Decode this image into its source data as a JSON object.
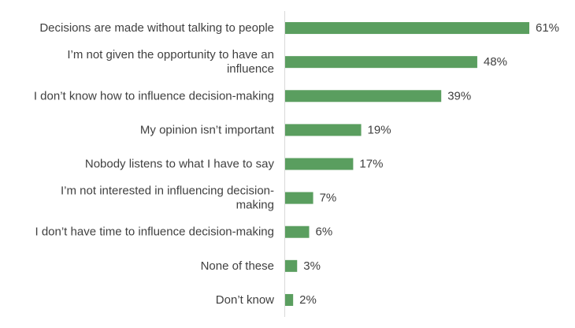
{
  "chart_data": {
    "type": "bar",
    "orientation": "horizontal",
    "categories": [
      "Decisions are made without talking to people",
      "I’m not given the opportunity to have an influence",
      "I don’t know how to influence decision-making",
      "My opinion isn’t important",
      "Nobody listens to what I have to say",
      "I’m not interested in influencing decision-making",
      "I don’t have time to influence decision-making",
      "None of these",
      "Don’t know"
    ],
    "category_label_lines": [
      [
        "Decisions are made without talking to people"
      ],
      [
        "I’m not given the opportunity to have an",
        "influence"
      ],
      [
        "I don’t know how to influence decision-making"
      ],
      [
        "My opinion isn’t important"
      ],
      [
        "Nobody listens to what I have to say"
      ],
      [
        "I’m not interested in influencing decision-",
        "making"
      ],
      [
        "I don’t have time to influence decision-making"
      ],
      [
        "None of these"
      ],
      [
        "Don’t know"
      ]
    ],
    "values": [
      61,
      48,
      39,
      19,
      17,
      7,
      6,
      3,
      2
    ],
    "value_labels": [
      "61%",
      "48%",
      "39%",
      "19%",
      "17%",
      "7%",
      "6%",
      "3%",
      "2%"
    ],
    "unit": "%",
    "title": "",
    "xlabel": "",
    "ylabel": "",
    "xlim": [
      0,
      70
    ],
    "grid": false,
    "legend": "none",
    "colors": {
      "bar": "#5a9e5f",
      "text": "#404040",
      "axis": "#d9d9d9"
    }
  }
}
